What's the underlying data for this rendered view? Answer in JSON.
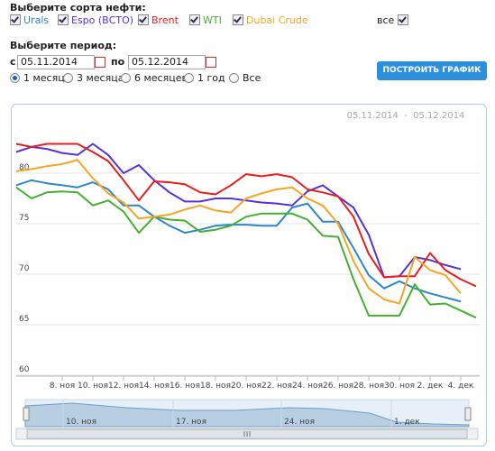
{
  "form": {
    "oil_label": "Выберите сорта нефти:",
    "all": "все",
    "period_label": "Выберите период:",
    "from_label": "с",
    "from": "05.11.2014",
    "to_label": "по",
    "to": "05.12.2014",
    "periods": [
      "1 месяц",
      "3 месяца",
      "6 месяцев",
      "1 год",
      "Все"
    ],
    "button": "ПОСТРОИТЬ ГРАФИК"
  },
  "chart_data": {
    "type": "line",
    "subtitle": "05.11.2014  -  05.12.2014",
    "categories": [
      null,
      null,
      null,
      "8. ноя",
      null,
      "10. ноя",
      null,
      "12. ноя",
      null,
      "14. ноя",
      null,
      "16. ноя",
      null,
      "18. ноя",
      null,
      "20. ноя",
      null,
      "22. ноя",
      null,
      "24. ноя",
      null,
      "26. ноя",
      null,
      "28. ноя",
      null,
      "30. ноя",
      null,
      "2. дек",
      null,
      "4. дек",
      null
    ],
    "ylim": [
      60,
      85
    ],
    "yticks": [
      60,
      65,
      70,
      75,
      80
    ],
    "grid": true,
    "series": [
      {
        "name": "Urals",
        "color": "#2f86c8",
        "values": [
          78.8,
          79.3,
          79.0,
          78.8,
          78.6,
          79.1,
          78.4,
          76.8,
          76.8,
          75.7,
          74.8,
          74.1,
          74.4,
          74.8,
          74.9,
          74.9,
          74.8,
          74.8,
          76.6,
          77.0,
          75.2,
          75.2,
          72.6,
          69.9,
          68.6,
          69.3,
          68.6,
          68.1,
          67.7,
          67.3,
          null
        ]
      },
      {
        "name": "Espo (ВСТО)",
        "color": "#5533d6",
        "values": [
          82.1,
          82.6,
          82.4,
          82.0,
          81.8,
          82.9,
          81.8,
          80.0,
          80.8,
          79.3,
          78.1,
          77.2,
          77.2,
          77.5,
          77.5,
          77.3,
          77.1,
          77.0,
          76.8,
          78.2,
          78.8,
          77.7,
          76.6,
          73.9,
          69.7,
          69.8,
          71.7,
          71.4,
          70.9,
          70.5,
          null
        ]
      },
      {
        "name": "Brent",
        "color": "#e5201c",
        "values": [
          82.9,
          82.6,
          82.9,
          82.9,
          82.9,
          82.1,
          81.2,
          79.3,
          77.3,
          79.2,
          79.1,
          78.9,
          78.1,
          77.9,
          78.8,
          79.9,
          79.7,
          79.9,
          79.6,
          78.4,
          78.1,
          77.7,
          75.7,
          72.0,
          69.7,
          69.8,
          69.8,
          72.1,
          70.4,
          69.5,
          68.8
        ]
      },
      {
        "name": "WTI",
        "color": "#45b030",
        "values": [
          78.6,
          77.5,
          78.1,
          78.2,
          78.1,
          76.8,
          77.3,
          76.2,
          74.1,
          75.7,
          75.4,
          75.3,
          74.2,
          74.4,
          74.8,
          75.7,
          76.0,
          76.0,
          76.0,
          75.4,
          73.8,
          73.7,
          69.5,
          65.9,
          65.9,
          65.9,
          69.0,
          67.0,
          67.1,
          66.4,
          65.7
        ]
      },
      {
        "name": "Dubai Crude",
        "color": "#f5a623",
        "values": [
          80.2,
          80.4,
          80.7,
          80.9,
          81.3,
          79.5,
          78.0,
          77.1,
          75.5,
          75.7,
          75.9,
          76.4,
          76.8,
          76.3,
          76.1,
          77.5,
          78.0,
          78.4,
          78.6,
          77.5,
          76.8,
          75.0,
          71.3,
          68.6,
          67.5,
          67.1,
          71.7,
          70.4,
          69.9,
          68.1,
          null
        ]
      }
    ]
  },
  "navigator": {
    "labels": [
      "10. ноя",
      "17. ноя",
      "24. ноя",
      "1. дек"
    ]
  }
}
